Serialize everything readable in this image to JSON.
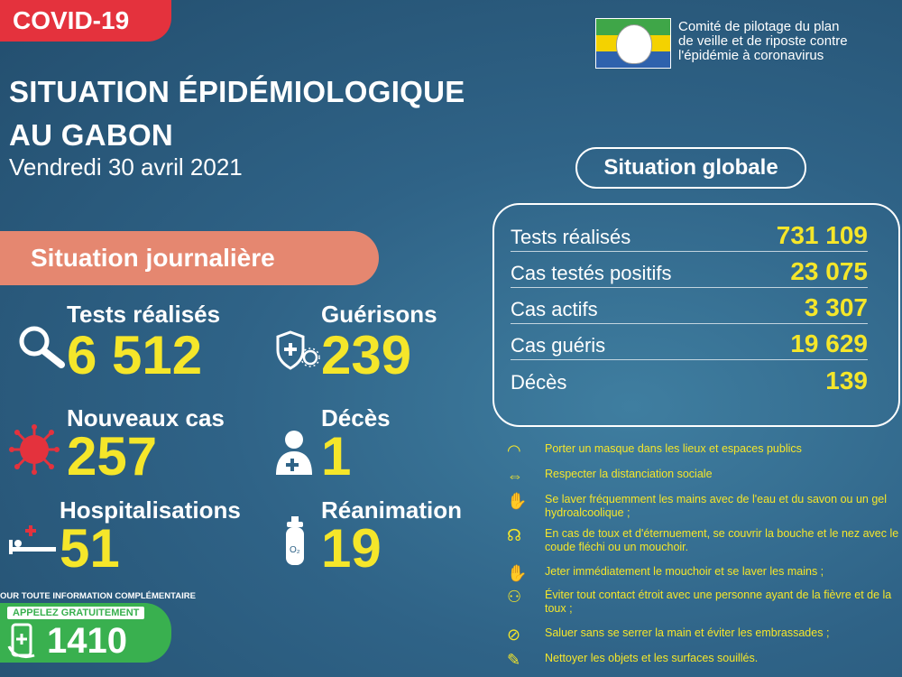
{
  "header": {
    "tag": "COVID-19",
    "title_line1": "SITUATION ÉPIDÉMIOLOGIQUE",
    "title_line2": "AU GABON",
    "date": "Vendredi 30 avril 2021"
  },
  "committee": {
    "line1": "Comité de pilotage du plan",
    "line2": "de veille et de riposte contre",
    "line3": "l'épidémie à coronavirus"
  },
  "daily": {
    "heading": "Situation journalière",
    "tests_label": "Tests réalisés",
    "tests_value": "6 512",
    "recoveries_label": "Guérisons",
    "recoveries_value": "239",
    "new_cases_label": "Nouveaux cas",
    "new_cases_value": "257",
    "deaths_label": "Décès",
    "deaths_value": "1",
    "hosp_label": "Hospitalisations",
    "hosp_value": "51",
    "icu_label": "Réanimation",
    "icu_value": "19"
  },
  "global": {
    "heading": "Situation globale",
    "rows": [
      {
        "label": "Tests réalisés",
        "value": "731 109"
      },
      {
        "label": "Cas testés positifs",
        "value": "23 075"
      },
      {
        "label": "Cas actifs",
        "value": "3 307"
      },
      {
        "label": "Cas guéris",
        "value": "19 629"
      },
      {
        "label": "Décès",
        "value": "139"
      }
    ]
  },
  "tips": [
    {
      "icon": "mask-icon",
      "text": "Porter un masque dans les lieux et espaces publics"
    },
    {
      "icon": "distance-icon",
      "text": "Respecter la distanciation sociale"
    },
    {
      "icon": "handwash-icon",
      "text": "Se laver fréquemment les mains avec de l'eau et du savon ou un gel hydroalcoolique ;"
    },
    {
      "icon": "cough-icon",
      "text": "En cas de toux et d'éternuement, se couvrir la bouche et le nez avec le coude fléchi ou un mouchoir."
    },
    {
      "icon": "tissue-icon",
      "text": "Jeter immédiatement le mouchoir et se laver les mains ;"
    },
    {
      "icon": "avoid-contact-icon",
      "text": "Éviter tout contact étroit avec une personne ayant de la fièvre et de la toux ;"
    },
    {
      "icon": "no-handshake-icon",
      "text": "Saluer sans se serrer la main et éviter les embrassades ;"
    },
    {
      "icon": "clean-icon",
      "text": "Nettoyer les objets et les surfaces souillés."
    }
  ],
  "footer": {
    "info": "OUR TOUTE INFORMATION COMPLÉMENTAIRE",
    "call_label": "APPELEZ GRATUITEMENT",
    "number": "1410"
  },
  "colors": {
    "accent_yellow": "#f5e62a",
    "tag_red": "#e4323d",
    "daily_orange": "#e58770",
    "call_green": "#39b04f"
  }
}
